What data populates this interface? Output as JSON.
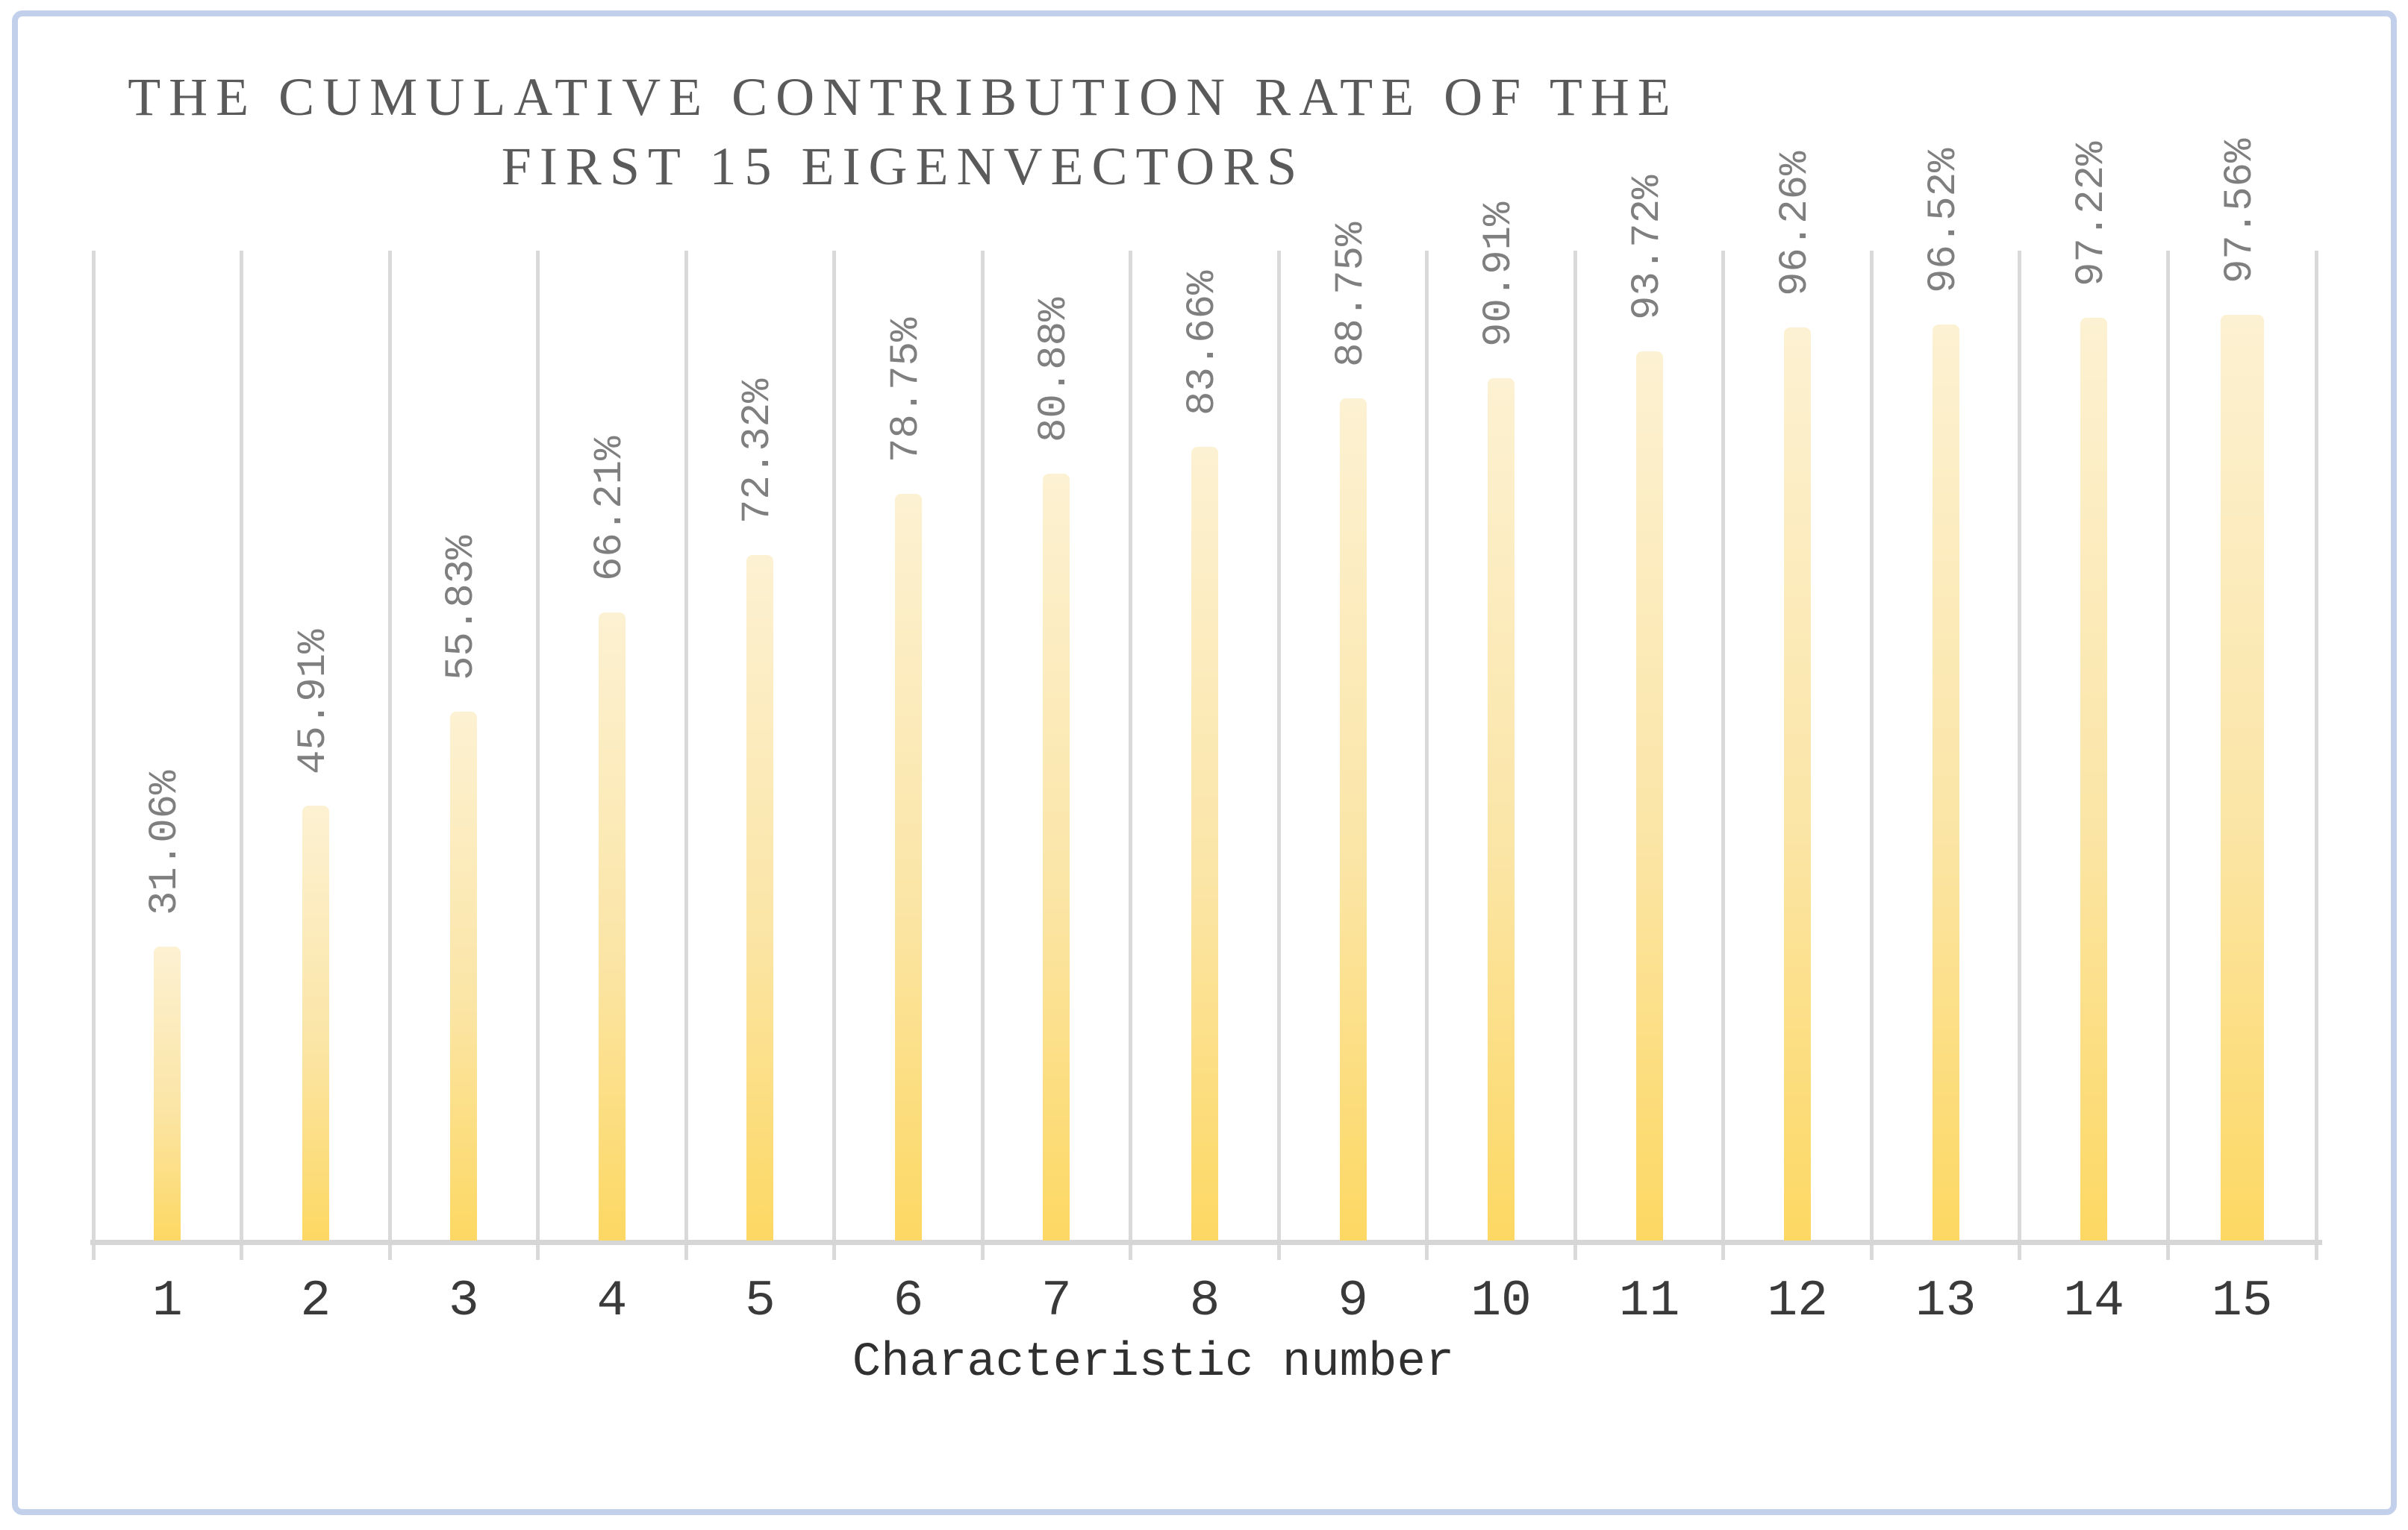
{
  "chart_data": {
    "type": "bar",
    "title": "THE CUMULATIVE CONTRIBUTION RATE OF THE FIRST 15 EIGENVECTORS",
    "title_lines": [
      "THE CUMULATIVE CONTRIBUTION RATE OF THE",
      "FIRST 15 EIGENVECTORS"
    ],
    "categories": [
      "1",
      "2",
      "3",
      "4",
      "5",
      "6",
      "7",
      "8",
      "9",
      "10",
      "11",
      "12",
      "13",
      "14",
      "15"
    ],
    "values": [
      31.06,
      45.91,
      55.83,
      66.21,
      72.32,
      78.75,
      80.88,
      83.66,
      88.75,
      90.91,
      93.72,
      96.26,
      96.52,
      97.22,
      97.56
    ],
    "labels": [
      "31.06%",
      "45.91%",
      "55.83%",
      "66.21%",
      "72.32%",
      "78.75%",
      "80.88%",
      "83.66%",
      "88.75%",
      "90.91%",
      "93.72%",
      "96.26%",
      "96.52%",
      "97.22%",
      "97.56%"
    ],
    "xlabel": "Characteristic number",
    "ylabel": "",
    "ylim": [
      0,
      100
    ],
    "grid": "vertical-category-separators",
    "legend_position": "none",
    "data_label_rotation": -90
  },
  "colors": {
    "bar_gradient_top": "#FCF1D2",
    "bar_gradient_bottom": "#FDD863",
    "gridline": "#D9D9D9",
    "axis_line": "#D6D6D6",
    "title_text": "#5A5A5A",
    "data_label_text": "#7F7F7F",
    "axis_text": "#3A3A3A",
    "card_border": "#C3D0EB"
  }
}
